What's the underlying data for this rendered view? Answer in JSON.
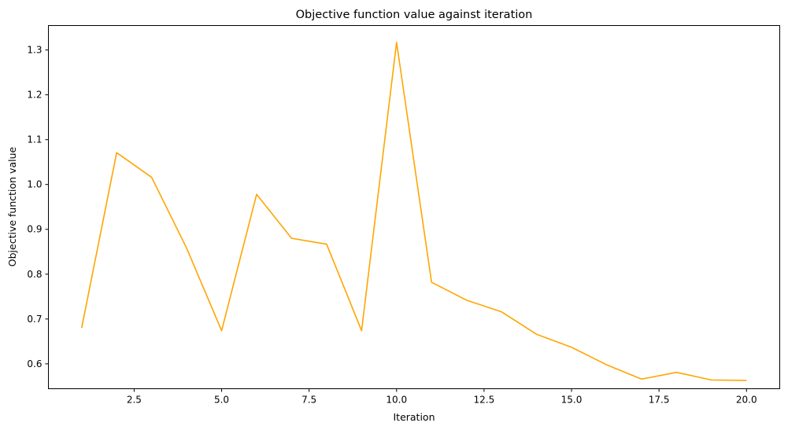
{
  "chart_data": {
    "type": "line",
    "title": "Objective function value against iteration",
    "xlabel": "Iteration",
    "ylabel": "Objective function value",
    "xlim": [
      0.05,
      20.95
    ],
    "ylim": [
      0.5445,
      1.3545
    ],
    "xticks": [
      2.5,
      5.0,
      7.5,
      10.0,
      12.5,
      15.0,
      17.5,
      20.0
    ],
    "xtick_labels": [
      "2.5",
      "5.0",
      "7.5",
      "10.0",
      "12.5",
      "15.0",
      "17.5",
      "20.0"
    ],
    "yticks": [
      0.6,
      0.7,
      0.8,
      0.9,
      1.0,
      1.1,
      1.2,
      1.3
    ],
    "ytick_labels": [
      "0.6",
      "0.7",
      "0.8",
      "0.9",
      "1.0",
      "1.1",
      "1.2",
      "1.3"
    ],
    "grid": false,
    "series": [
      {
        "color": "#ffa500",
        "x": [
          1,
          2,
          3,
          4,
          5,
          6,
          7,
          8,
          9,
          10,
          11,
          12,
          13,
          14,
          15,
          16,
          17,
          18,
          19,
          20
        ],
        "y": [
          0.68,
          1.071,
          1.016,
          0.858,
          0.674,
          0.978,
          0.88,
          0.867,
          0.674,
          1.317,
          0.782,
          0.742,
          0.716,
          0.666,
          0.637,
          0.598,
          0.566,
          0.581,
          0.564,
          0.563
        ]
      }
    ]
  }
}
